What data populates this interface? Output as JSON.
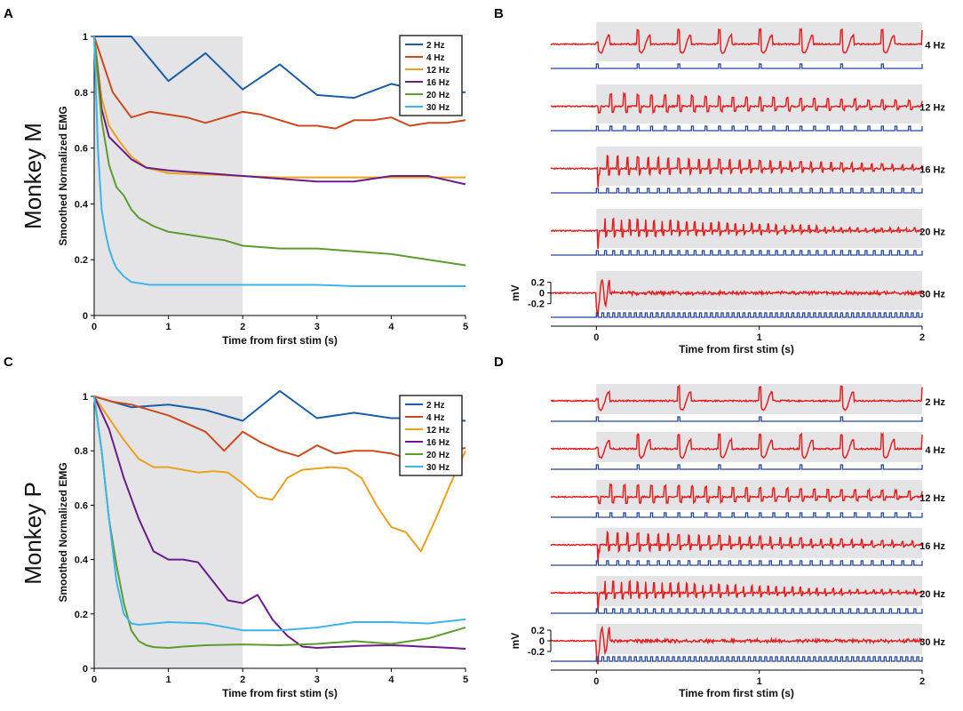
{
  "figure": {
    "rows": [
      {
        "panel_left": "A",
        "panel_right": "B",
        "subject": "Monkey M"
      },
      {
        "panel_left": "C",
        "panel_right": "D",
        "subject": "Monkey P"
      }
    ]
  },
  "colors": {
    "2 Hz": "#1b5ea8",
    "4 Hz": "#cc4a1e",
    "12 Hz": "#e8a21e",
    "16 Hz": "#6b1c8a",
    "20 Hz": "#5d9c2f",
    "30 Hz": "#3fb4e6",
    "emg": "#e02222",
    "stim": "#24449a",
    "shade": "#e4e4e6"
  },
  "chart_data": [
    {
      "panel": "A",
      "type": "line",
      "title": "",
      "xlabel": "Time from first stim (s)",
      "ylabel": "Smoothed Normalized EMG",
      "side_label": "Monkey M",
      "xlim": [
        0,
        5
      ],
      "ylim": [
        0,
        1
      ],
      "xticks": [
        "0",
        "1",
        "2",
        "3",
        "4",
        "5"
      ],
      "yticks": [
        "0",
        "0.2",
        "0.4",
        "0.6",
        "0.8",
        "1"
      ],
      "shaded_x": [
        0,
        2
      ],
      "legend_position": "top-right",
      "series": [
        {
          "name": "2 Hz",
          "x": [
            0,
            0.5,
            1,
            1.5,
            2,
            2.5,
            3,
            3.5,
            4,
            4.5,
            5
          ],
          "values": [
            1,
            1,
            0.84,
            0.94,
            0.81,
            0.9,
            0.79,
            0.78,
            0.83,
            0.8,
            0.8
          ]
        },
        {
          "name": "4 Hz",
          "x": [
            0,
            0.25,
            0.5,
            0.75,
            1,
            1.25,
            1.5,
            1.75,
            2,
            2.25,
            2.5,
            2.75,
            3,
            3.25,
            3.5,
            3.75,
            4,
            4.25,
            4.5,
            4.75,
            5
          ],
          "values": [
            1,
            0.8,
            0.71,
            0.73,
            0.72,
            0.71,
            0.69,
            0.71,
            0.73,
            0.72,
            0.7,
            0.68,
            0.68,
            0.67,
            0.7,
            0.7,
            0.71,
            0.68,
            0.69,
            0.69,
            0.7
          ]
        },
        {
          "name": "12 Hz",
          "x": [
            0,
            0.1,
            0.2,
            0.35,
            0.5,
            0.7,
            1,
            1.5,
            2,
            2.5,
            3,
            3.5,
            4,
            4.5,
            5
          ],
          "values": [
            1,
            0.78,
            0.68,
            0.62,
            0.57,
            0.53,
            0.51,
            0.505,
            0.5,
            0.495,
            0.495,
            0.495,
            0.495,
            0.495,
            0.495
          ]
        },
        {
          "name": "16 Hz",
          "x": [
            0,
            0.1,
            0.2,
            0.35,
            0.5,
            0.7,
            1,
            1.5,
            2,
            2.5,
            3,
            3.5,
            4,
            4.5,
            5
          ],
          "values": [
            1,
            0.74,
            0.64,
            0.6,
            0.56,
            0.53,
            0.52,
            0.51,
            0.5,
            0.49,
            0.48,
            0.48,
            0.5,
            0.5,
            0.47
          ]
        },
        {
          "name": "20 Hz",
          "x": [
            0,
            0.1,
            0.2,
            0.3,
            0.4,
            0.5,
            0.6,
            0.8,
            1,
            1.25,
            1.5,
            1.75,
            2,
            2.5,
            3,
            3.5,
            4,
            4.5,
            5
          ],
          "values": [
            1,
            0.7,
            0.54,
            0.46,
            0.43,
            0.38,
            0.35,
            0.32,
            0.3,
            0.29,
            0.28,
            0.27,
            0.25,
            0.24,
            0.24,
            0.23,
            0.22,
            0.2,
            0.18
          ]
        },
        {
          "name": "30 Hz",
          "x": [
            0,
            0.05,
            0.1,
            0.15,
            0.2,
            0.25,
            0.3,
            0.4,
            0.5,
            0.75,
            1,
            1.5,
            2,
            2.5,
            3,
            3.5,
            4,
            4.5,
            5
          ],
          "values": [
            1,
            0.6,
            0.38,
            0.3,
            0.24,
            0.2,
            0.17,
            0.14,
            0.12,
            0.11,
            0.11,
            0.11,
            0.11,
            0.11,
            0.11,
            0.105,
            0.105,
            0.105,
            0.105
          ]
        }
      ]
    },
    {
      "panel": "C",
      "type": "line",
      "title": "",
      "xlabel": "Time from first stim (s)",
      "ylabel": "Smoothed Normalized EMG",
      "side_label": "Monkey P",
      "xlim": [
        0,
        5
      ],
      "ylim": [
        0,
        1
      ],
      "xticks": [
        "0",
        "1",
        "2",
        "3",
        "4",
        "5"
      ],
      "yticks": [
        "0",
        "0.2",
        "0.4",
        "0.6",
        "0.8",
        "1"
      ],
      "shaded_x": [
        0,
        2
      ],
      "legend_position": "top-right",
      "series": [
        {
          "name": "2 Hz",
          "x": [
            0,
            0.5,
            1,
            1.5,
            2,
            2.5,
            3,
            3.5,
            4,
            4.5,
            5
          ],
          "values": [
            1,
            0.96,
            0.97,
            0.95,
            0.91,
            1.02,
            0.92,
            0.94,
            0.92,
            0.92,
            0.91
          ]
        },
        {
          "name": "4 Hz",
          "x": [
            0,
            0.25,
            0.5,
            0.75,
            1,
            1.25,
            1.5,
            1.75,
            2,
            2.25,
            2.5,
            2.75,
            3,
            3.25,
            3.5,
            3.75,
            4,
            4.25,
            4.5,
            4.75,
            5
          ],
          "values": [
            1,
            0.98,
            0.97,
            0.95,
            0.93,
            0.9,
            0.87,
            0.8,
            0.87,
            0.83,
            0.8,
            0.78,
            0.82,
            0.79,
            0.8,
            0.8,
            0.79,
            0.77,
            0.79,
            0.8,
            0.81
          ]
        },
        {
          "name": "12 Hz",
          "x": [
            0,
            0.2,
            0.4,
            0.6,
            0.8,
            1,
            1.2,
            1.4,
            1.6,
            1.8,
            2,
            2.2,
            2.4,
            2.6,
            2.8,
            3,
            3.2,
            3.4,
            3.6,
            3.8,
            4,
            4.2,
            4.4,
            4.6,
            4.8,
            5
          ],
          "values": [
            1,
            0.92,
            0.84,
            0.77,
            0.74,
            0.74,
            0.73,
            0.72,
            0.725,
            0.72,
            0.68,
            0.63,
            0.62,
            0.7,
            0.73,
            0.735,
            0.74,
            0.735,
            0.7,
            0.6,
            0.52,
            0.5,
            0.43,
            0.55,
            0.68,
            0.8
          ]
        },
        {
          "name": "16 Hz",
          "x": [
            0,
            0.2,
            0.4,
            0.6,
            0.8,
            1,
            1.2,
            1.4,
            1.6,
            1.8,
            2,
            2.2,
            2.4,
            2.6,
            2.8,
            3,
            3.2,
            3.4,
            3.6,
            3.8,
            4,
            4.2,
            4.4,
            4.6,
            4.8,
            5
          ],
          "values": [
            1,
            0.88,
            0.7,
            0.55,
            0.43,
            0.4,
            0.4,
            0.39,
            0.32,
            0.25,
            0.24,
            0.27,
            0.18,
            0.12,
            0.08,
            0.075,
            0.078,
            0.08,
            0.083,
            0.084,
            0.085,
            0.083,
            0.08,
            0.078,
            0.075,
            0.072
          ]
        },
        {
          "name": "20 Hz",
          "x": [
            0,
            0.1,
            0.2,
            0.3,
            0.4,
            0.5,
            0.6,
            0.7,
            0.8,
            1,
            1.2,
            1.5,
            2,
            2.5,
            3,
            3.5,
            4,
            4.5,
            5
          ],
          "values": [
            1,
            0.8,
            0.55,
            0.38,
            0.24,
            0.14,
            0.1,
            0.085,
            0.078,
            0.075,
            0.08,
            0.085,
            0.088,
            0.085,
            0.09,
            0.1,
            0.09,
            0.11,
            0.15
          ]
        },
        {
          "name": "30 Hz",
          "x": [
            0,
            0.1,
            0.2,
            0.3,
            0.4,
            0.5,
            0.6,
            0.8,
            1,
            1.5,
            2,
            2.5,
            3,
            3.5,
            4,
            4.5,
            5
          ],
          "values": [
            1,
            0.8,
            0.55,
            0.32,
            0.2,
            0.165,
            0.16,
            0.165,
            0.17,
            0.165,
            0.14,
            0.14,
            0.15,
            0.17,
            0.17,
            0.165,
            0.18
          ]
        }
      ]
    },
    {
      "panel": "B",
      "type": "line",
      "title": "",
      "xlabel": "Time from first stim (s)",
      "ylabel": "mV",
      "xlim": [
        -0.28,
        2
      ],
      "xticks": [
        "0",
        "1",
        "2"
      ],
      "yticks": [
        "0.2",
        "0",
        "-0.2"
      ],
      "shaded_x": [
        0,
        2
      ],
      "traces": [
        {
          "label": "4 Hz",
          "freq": 4
        },
        {
          "label": "12 Hz",
          "freq": 12
        },
        {
          "label": "16 Hz",
          "freq": 16
        },
        {
          "label": "20 Hz",
          "freq": 20
        },
        {
          "label": "30 Hz",
          "freq": 30
        }
      ]
    },
    {
      "panel": "D",
      "type": "line",
      "title": "",
      "xlabel": "Time from first stim (s)",
      "ylabel": "mV",
      "xlim": [
        -0.28,
        2
      ],
      "xticks": [
        "0",
        "1",
        "2"
      ],
      "yticks": [
        "0.2",
        "0",
        "-0.2"
      ],
      "shaded_x": [
        0,
        2
      ],
      "traces": [
        {
          "label": "2 Hz",
          "freq": 2
        },
        {
          "label": "4 Hz",
          "freq": 4
        },
        {
          "label": "12 Hz",
          "freq": 12
        },
        {
          "label": "16 Hz",
          "freq": 16
        },
        {
          "label": "20 Hz",
          "freq": 20
        },
        {
          "label": "30 Hz",
          "freq": 30
        }
      ]
    }
  ]
}
